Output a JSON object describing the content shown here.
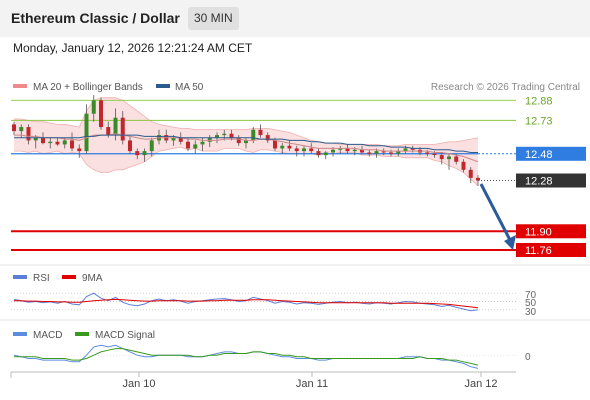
{
  "header": {
    "title": "Ethereum Classic / Dollar",
    "timeframe": "30 MIN"
  },
  "datetime": "Monday, January 12, 2026 12:21:24 AM CET",
  "legend": {
    "bollinger": "MA 20 + Bollinger Bands",
    "ma50": "MA 50",
    "credit": "Research © 2026 Trading Central"
  },
  "colors": {
    "resistance": "#8cc63f",
    "pivot": "#2f7de1",
    "support": "#e00000",
    "last": "#333333",
    "bollinger_fill": "#f8d5d5",
    "ma20": "#c88",
    "ma50": "#2b5a8e",
    "rsi": "#5b7fd6",
    "rsi_ma": "#e00000",
    "macd": "#5b8ce0",
    "macd_signal": "#3a9a20",
    "arrow": "#2b5a9e"
  },
  "rsi_panel": {
    "label": "RSI",
    "ma_label": "9MA",
    "levels": [
      "70",
      "50",
      "30"
    ]
  },
  "macd_panel": {
    "label": "MACD",
    "signal_label": "MACD Signal",
    "zero": "0"
  },
  "chart_data": {
    "type": "candlestick",
    "y_range": [
      11.7,
      12.92
    ],
    "levels": [
      {
        "value": 12.88,
        "label": "12.88",
        "kind": "resistance"
      },
      {
        "value": 12.73,
        "label": "12.73",
        "kind": "resistance"
      },
      {
        "value": 12.48,
        "label": "12.48",
        "kind": "pivot"
      },
      {
        "value": 12.28,
        "label": "12.28",
        "kind": "last"
      },
      {
        "value": 11.9,
        "label": "11.90",
        "kind": "support"
      },
      {
        "value": 11.76,
        "label": "11.76",
        "kind": "support"
      }
    ],
    "x_ticks": [
      "Jan 10",
      "Jan 11",
      "Jan 12"
    ],
    "candles": [
      [
        12.7,
        12.72,
        12.62,
        12.65
      ],
      [
        12.65,
        12.7,
        12.6,
        12.68
      ],
      [
        12.68,
        12.7,
        12.55,
        12.58
      ],
      [
        12.58,
        12.62,
        12.52,
        12.6
      ],
      [
        12.6,
        12.64,
        12.55,
        12.56
      ],
      [
        12.56,
        12.6,
        12.52,
        12.57
      ],
      [
        12.57,
        12.6,
        12.54,
        12.55
      ],
      [
        12.55,
        12.6,
        12.52,
        12.58
      ],
      [
        12.58,
        12.64,
        12.5,
        12.52
      ],
      [
        12.52,
        12.55,
        12.45,
        12.5
      ],
      [
        12.5,
        12.85,
        12.48,
        12.78
      ],
      [
        12.78,
        12.92,
        12.72,
        12.88
      ],
      [
        12.88,
        12.9,
        12.66,
        12.68
      ],
      [
        12.68,
        12.72,
        12.6,
        12.62
      ],
      [
        12.62,
        12.82,
        12.58,
        12.75
      ],
      [
        12.75,
        12.8,
        12.55,
        12.58
      ],
      [
        12.58,
        12.62,
        12.48,
        12.5
      ],
      [
        12.5,
        12.52,
        12.44,
        12.47
      ],
      [
        12.47,
        12.52,
        12.42,
        12.5
      ],
      [
        12.5,
        12.6,
        12.46,
        12.58
      ],
      [
        12.58,
        12.66,
        12.55,
        12.62
      ],
      [
        12.62,
        12.66,
        12.56,
        12.58
      ],
      [
        12.58,
        12.62,
        12.54,
        12.6
      ],
      [
        12.6,
        12.64,
        12.55,
        12.57
      ],
      [
        12.57,
        12.6,
        12.5,
        12.52
      ],
      [
        12.52,
        12.58,
        12.48,
        12.55
      ],
      [
        12.55,
        12.6,
        12.5,
        12.57
      ],
      [
        12.57,
        12.62,
        12.53,
        12.6
      ],
      [
        12.6,
        12.64,
        12.56,
        12.62
      ],
      [
        12.62,
        12.66,
        12.58,
        12.63
      ],
      [
        12.63,
        12.66,
        12.58,
        12.6
      ],
      [
        12.6,
        12.62,
        12.54,
        12.56
      ],
      [
        12.56,
        12.6,
        12.52,
        12.58
      ],
      [
        12.58,
        12.68,
        12.56,
        12.66
      ],
      [
        12.66,
        12.7,
        12.6,
        12.62
      ],
      [
        12.62,
        12.64,
        12.56,
        12.58
      ],
      [
        12.58,
        12.6,
        12.5,
        12.52
      ],
      [
        12.52,
        12.56,
        12.48,
        12.54
      ],
      [
        12.54,
        12.58,
        12.5,
        12.52
      ],
      [
        12.52,
        12.54,
        12.46,
        12.5
      ],
      [
        12.5,
        12.54,
        12.46,
        12.52
      ],
      [
        12.52,
        12.56,
        12.48,
        12.5
      ],
      [
        12.5,
        12.52,
        12.45,
        12.47
      ],
      [
        12.47,
        12.5,
        12.44,
        12.49
      ],
      [
        12.49,
        12.53,
        12.46,
        12.51
      ],
      [
        12.51,
        12.54,
        12.48,
        12.52
      ],
      [
        12.52,
        12.55,
        12.48,
        12.5
      ],
      [
        12.5,
        12.53,
        12.47,
        12.51
      ],
      [
        12.51,
        12.54,
        12.48,
        12.49
      ],
      [
        12.49,
        12.51,
        12.46,
        12.48
      ],
      [
        12.48,
        12.52,
        12.45,
        12.5
      ],
      [
        12.5,
        12.52,
        12.47,
        12.49
      ],
      [
        12.49,
        12.51,
        12.46,
        12.48
      ],
      [
        12.48,
        12.52,
        12.46,
        12.5
      ],
      [
        12.5,
        12.54,
        12.48,
        12.52
      ],
      [
        12.52,
        12.54,
        12.49,
        12.51
      ],
      [
        12.51,
        12.53,
        12.47,
        12.49
      ],
      [
        12.49,
        12.51,
        12.46,
        12.48
      ],
      [
        12.48,
        12.5,
        12.45,
        12.47
      ],
      [
        12.47,
        12.49,
        12.4,
        12.44
      ],
      [
        12.44,
        12.48,
        12.36,
        12.46
      ],
      [
        12.46,
        12.48,
        12.4,
        12.42
      ],
      [
        12.42,
        12.44,
        12.34,
        12.36
      ],
      [
        12.36,
        12.38,
        12.26,
        12.3
      ],
      [
        12.3,
        12.32,
        12.24,
        12.28
      ]
    ],
    "ma20": [
      12.62,
      12.62,
      12.61,
      12.61,
      12.6,
      12.6,
      12.6,
      12.59,
      12.59,
      12.58,
      12.6,
      12.62,
      12.62,
      12.62,
      12.63,
      12.62,
      12.61,
      12.6,
      12.59,
      12.59,
      12.6,
      12.6,
      12.6,
      12.6,
      12.59,
      12.59,
      12.58,
      12.58,
      12.58,
      12.59,
      12.59,
      12.59,
      12.58,
      12.58,
      12.59,
      12.59,
      12.58,
      12.57,
      12.56,
      12.55,
      12.54,
      12.53,
      12.52,
      12.52,
      12.52,
      12.52,
      12.52,
      12.52,
      12.51,
      12.51,
      12.51,
      12.5,
      12.5,
      12.5,
      12.5,
      12.5,
      12.5,
      12.5,
      12.49,
      12.49,
      12.48,
      12.47,
      12.46,
      12.44,
      12.42
    ],
    "bb_upper": [
      12.74,
      12.74,
      12.73,
      12.72,
      12.72,
      12.71,
      12.7,
      12.7,
      12.69,
      12.68,
      12.8,
      12.88,
      12.9,
      12.9,
      12.9,
      12.88,
      12.84,
      12.8,
      12.76,
      12.72,
      12.7,
      12.69,
      12.68,
      12.67,
      12.67,
      12.66,
      12.66,
      12.66,
      12.66,
      12.66,
      12.66,
      12.66,
      12.66,
      12.67,
      12.67,
      12.67,
      12.66,
      12.65,
      12.64,
      12.62,
      12.6,
      12.58,
      12.57,
      12.56,
      12.56,
      12.55,
      12.55,
      12.55,
      12.55,
      12.55,
      12.55,
      12.54,
      12.54,
      12.54,
      12.55,
      12.55,
      12.55,
      12.55,
      12.55,
      12.56,
      12.57,
      12.57,
      12.58,
      12.59,
      12.6
    ],
    "bb_lower": [
      12.5,
      12.5,
      12.49,
      12.5,
      12.48,
      12.49,
      12.5,
      12.48,
      12.49,
      12.48,
      12.4,
      12.36,
      12.34,
      12.34,
      12.36,
      12.36,
      12.38,
      12.4,
      12.42,
      12.46,
      12.5,
      12.51,
      12.52,
      12.53,
      12.51,
      12.52,
      12.5,
      12.5,
      12.5,
      12.52,
      12.52,
      12.52,
      12.5,
      12.49,
      12.51,
      12.51,
      12.5,
      12.49,
      12.48,
      12.48,
      12.48,
      12.48,
      12.47,
      12.48,
      12.48,
      12.49,
      12.49,
      12.49,
      12.47,
      12.47,
      12.47,
      12.46,
      12.46,
      12.46,
      12.45,
      12.45,
      12.45,
      12.45,
      12.43,
      12.42,
      12.39,
      12.37,
      12.34,
      12.29,
      12.24
    ],
    "ma50": [
      12.6,
      12.6,
      12.6,
      12.6,
      12.6,
      12.6,
      12.6,
      12.6,
      12.6,
      12.6,
      12.61,
      12.61,
      12.62,
      12.62,
      12.62,
      12.62,
      12.62,
      12.62,
      12.61,
      12.61,
      12.61,
      12.61,
      12.61,
      12.6,
      12.6,
      12.6,
      12.6,
      12.6,
      12.6,
      12.6,
      12.6,
      12.6,
      12.6,
      12.6,
      12.59,
      12.59,
      12.59,
      12.59,
      12.58,
      12.58,
      12.58,
      12.57,
      12.57,
      12.56,
      12.56,
      12.56,
      12.55,
      12.55,
      12.55,
      12.54,
      12.54,
      12.54,
      12.53,
      12.53,
      12.53,
      12.52,
      12.52,
      12.52,
      12.51,
      12.51,
      12.51,
      12.5,
      12.5,
      12.49,
      12.49
    ],
    "rsi": [
      55,
      52,
      48,
      50,
      47,
      49,
      46,
      50,
      44,
      42,
      62,
      70,
      58,
      52,
      60,
      48,
      42,
      40,
      44,
      52,
      56,
      52,
      54,
      51,
      46,
      50,
      52,
      54,
      56,
      57,
      54,
      50,
      52,
      60,
      56,
      52,
      46,
      50,
      48,
      44,
      47,
      46,
      43,
      46,
      48,
      50,
      47,
      48,
      46,
      44,
      47,
      46,
      44,
      47,
      50,
      49,
      46,
      44,
      42,
      38,
      41,
      36,
      32,
      28,
      30
    ],
    "rsi_ma": [
      52,
      52,
      51,
      51,
      50,
      50,
      49,
      49,
      48,
      48,
      50,
      52,
      53,
      54,
      55,
      54,
      53,
      52,
      51,
      51,
      52,
      52,
      52,
      52,
      51,
      51,
      51,
      52,
      52,
      53,
      53,
      53,
      53,
      54,
      54,
      54,
      53,
      52,
      51,
      50,
      49,
      48,
      47,
      47,
      47,
      47,
      47,
      47,
      47,
      47,
      47,
      47,
      46,
      46,
      46,
      46,
      46,
      46,
      45,
      44,
      43,
      41,
      39,
      37,
      35
    ],
    "macd": [
      0.0,
      -0.01,
      -0.02,
      -0.02,
      -0.03,
      -0.03,
      -0.03,
      -0.03,
      -0.04,
      -0.04,
      0.0,
      0.05,
      0.06,
      0.05,
      0.06,
      0.04,
      0.02,
      0.0,
      -0.01,
      -0.01,
      0.0,
      0.0,
      0.0,
      0.0,
      -0.01,
      -0.01,
      -0.01,
      0.0,
      0.01,
      0.02,
      0.02,
      0.01,
      0.01,
      0.02,
      0.02,
      0.01,
      0.0,
      -0.01,
      -0.01,
      -0.02,
      -0.02,
      -0.02,
      -0.03,
      -0.03,
      -0.02,
      -0.02,
      -0.02,
      -0.02,
      -0.02,
      -0.02,
      -0.02,
      -0.02,
      -0.02,
      -0.02,
      -0.01,
      -0.01,
      -0.01,
      -0.02,
      -0.02,
      -0.03,
      -0.03,
      -0.04,
      -0.05,
      -0.07,
      -0.08
    ],
    "macd_signal": [
      -0.01,
      -0.01,
      -0.01,
      -0.01,
      -0.02,
      -0.02,
      -0.02,
      -0.02,
      -0.03,
      -0.03,
      -0.02,
      0.0,
      0.02,
      0.03,
      0.04,
      0.04,
      0.03,
      0.02,
      0.01,
      0.0,
      0.0,
      0.0,
      0.0,
      0.0,
      0.0,
      -0.01,
      -0.01,
      0.0,
      0.0,
      0.01,
      0.01,
      0.01,
      0.01,
      0.02,
      0.02,
      0.01,
      0.01,
      0.0,
      0.0,
      -0.01,
      -0.01,
      -0.02,
      -0.02,
      -0.02,
      -0.02,
      -0.02,
      -0.02,
      -0.02,
      -0.02,
      -0.02,
      -0.02,
      -0.02,
      -0.02,
      -0.02,
      -0.02,
      -0.02,
      -0.01,
      -0.02,
      -0.02,
      -0.02,
      -0.03,
      -0.03,
      -0.04,
      -0.05,
      -0.06
    ]
  }
}
